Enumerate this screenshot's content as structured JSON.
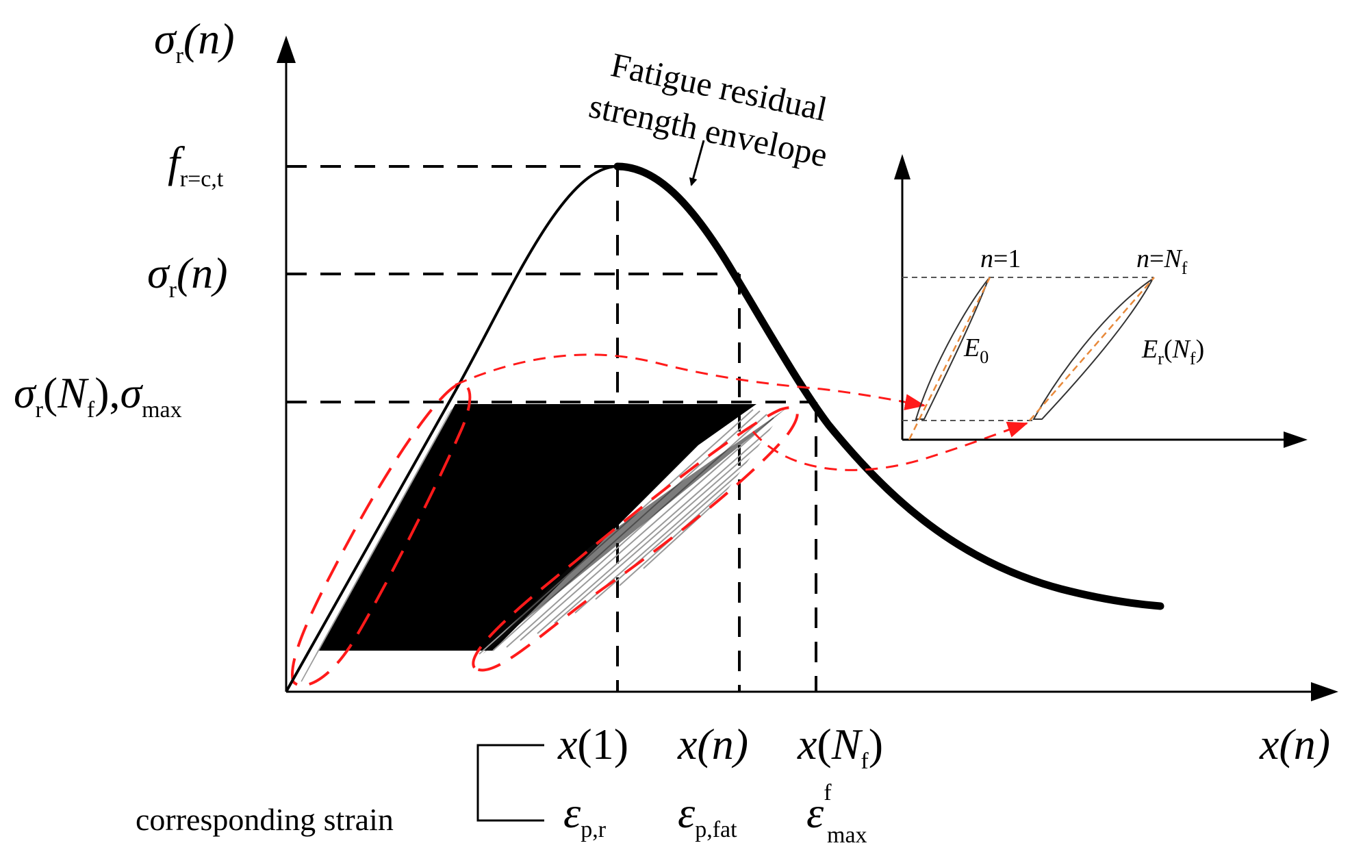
{
  "colors": {
    "line": "#000000",
    "highlight": "#ff1a1a",
    "modulus_dash": "#e8893a",
    "grid_dash": "#000000"
  },
  "main_axes": {
    "y_axis_label": {
      "symbol": "σ",
      "sub": "r",
      "arg": "(n)"
    },
    "x_axis_label": {
      "symbol": "x",
      "arg": "(n)"
    }
  },
  "y_levels": {
    "peak": {
      "symbol": "f",
      "sub": "r=c,t"
    },
    "current": {
      "symbol": "σ",
      "sub": "r",
      "arg": "(n)"
    },
    "failure": {
      "symbol1": "σ",
      "sub1": "r",
      "arg1_open": "(",
      "arg1_N": "N",
      "arg1_sub": "f",
      "arg1_close": ")",
      "sep": ",",
      "symbol2": "σ",
      "sub2": "max"
    }
  },
  "x_levels": {
    "first": {
      "symbol": "x",
      "arg": "(1)"
    },
    "current": {
      "symbol": "x",
      "arg": "(n)"
    },
    "failure": {
      "symbol": "x",
      "open": "(",
      "N": "N",
      "sub": "f",
      "close": ")"
    }
  },
  "strain_row": {
    "label": "corresponding strain",
    "first": {
      "symbol": "ε",
      "sub": "p,r"
    },
    "current": {
      "symbol": "ε",
      "sub": "p,fat"
    },
    "failure": {
      "symbol": "ε",
      "sup": "f",
      "sub": "max"
    }
  },
  "envelope_annotation": {
    "line1": "Fatigue residual",
    "line2": "strength envelope"
  },
  "inset": {
    "first_cycle": {
      "n": "n",
      "eq": "=1"
    },
    "last_cycle": {
      "n": "n",
      "eq": "=",
      "N": "N",
      "sub": "f"
    },
    "initial_modulus": {
      "symbol": "E",
      "sub": "0"
    },
    "residual_modulus": {
      "symbol": "E",
      "sub": "r",
      "open": "(",
      "N": "N",
      "nsub": "f",
      "close": ")"
    }
  }
}
